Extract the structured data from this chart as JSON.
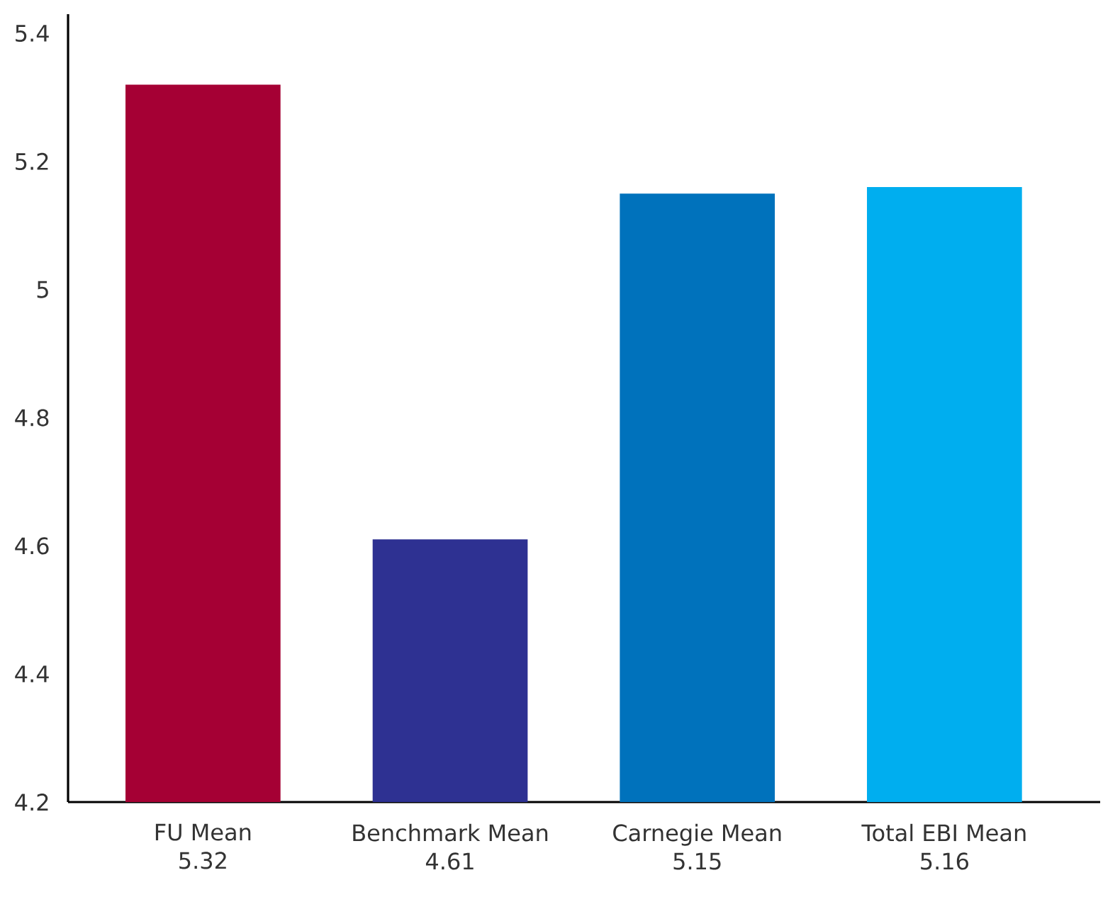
{
  "chart_data": {
    "type": "bar",
    "categories": [
      "FU Mean",
      "Benchmark Mean",
      "Carnegie Mean",
      "Total EBI Mean"
    ],
    "values": [
      5.32,
      4.61,
      5.15,
      5.16
    ],
    "colors": [
      "#a50034",
      "#2e3192",
      "#0072bc",
      "#00aeef"
    ],
    "data_labels": true,
    "ylim": [
      4.2,
      5.43
    ],
    "yticks": [
      4.2,
      4.4,
      4.6,
      4.8,
      5,
      5.2,
      5.4
    ],
    "grid": false
  }
}
